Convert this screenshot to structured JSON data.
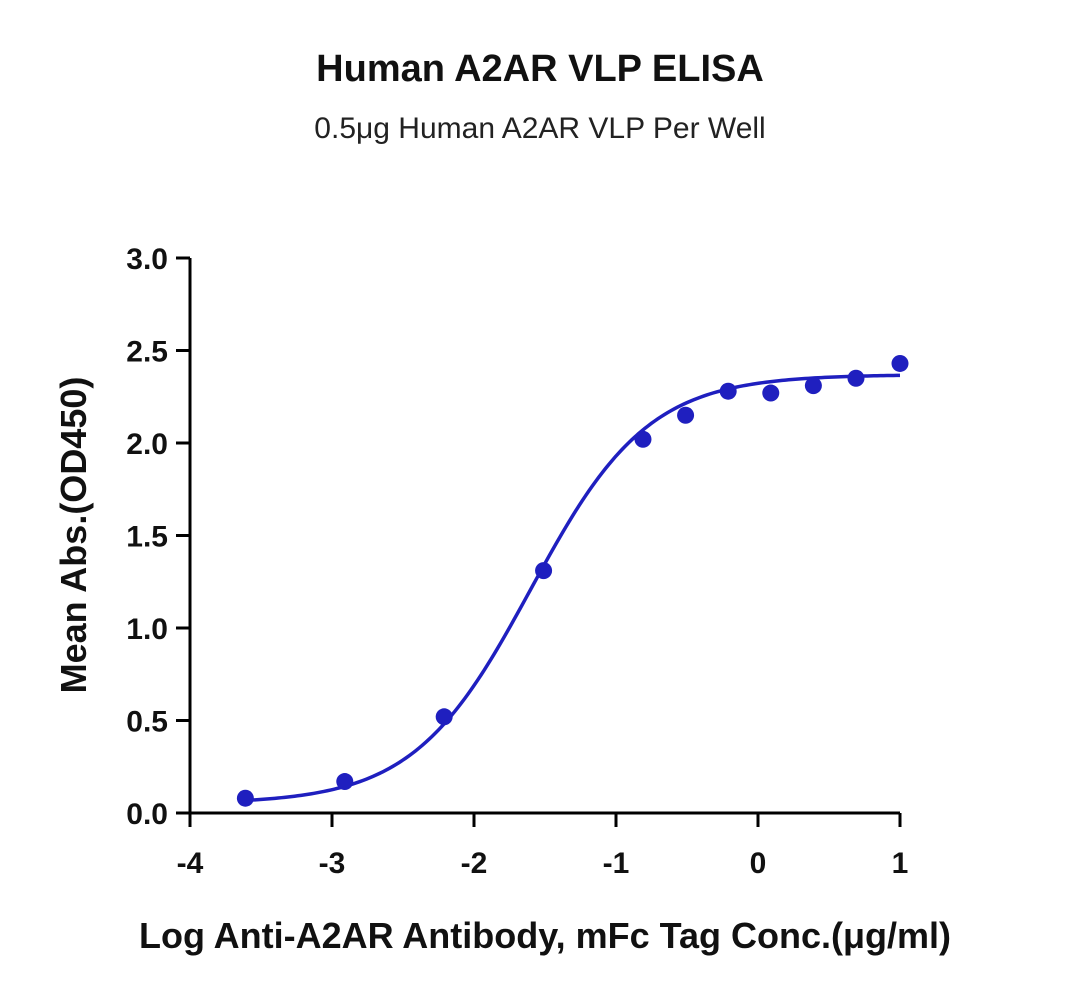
{
  "chart_data": {
    "type": "scatter",
    "title": "Human A2AR VLP ELISA",
    "subtitle": "0.5μg Human A2AR VLP Per Well",
    "xlabel": "Log Anti-A2AR Antibody, mFc Tag Conc.(μg/ml)",
    "ylabel": "Mean Abs.(OD450)",
    "xlim": [
      -4,
      1
    ],
    "ylim": [
      0,
      3.0
    ],
    "xticks": [
      "-4",
      "-3",
      "-2",
      "-1",
      "0",
      "1"
    ],
    "yticks": [
      "0.0",
      "0.5",
      "1.0",
      "1.5",
      "2.0",
      "2.5",
      "3.0"
    ],
    "grid": false,
    "series": [
      {
        "x": [
          -3.61,
          -2.91,
          -2.21,
          -1.51,
          -0.81,
          -0.51,
          -0.21,
          0.09,
          0.39,
          0.69,
          1.0
        ],
        "y": [
          0.08,
          0.17,
          0.52,
          1.31,
          2.02,
          2.15,
          2.28,
          2.27,
          2.31,
          2.35,
          2.43
        ],
        "fit": {
          "model": "4PL",
          "bottom": 0.05,
          "top": 2.37,
          "logEC50": -1.6,
          "hill": 1.05
        }
      }
    ],
    "colors": {
      "series": "#1f1fbf",
      "axis": "#000000"
    }
  }
}
